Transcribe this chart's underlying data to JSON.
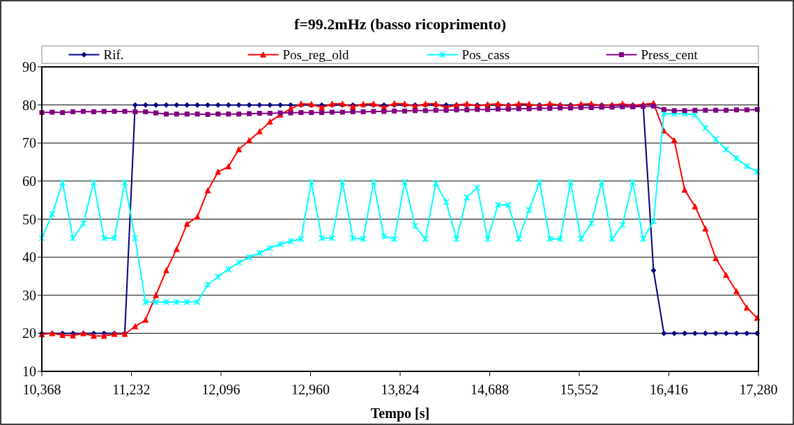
{
  "chart_data": {
    "type": "line",
    "title": "f=99.2mHz (basso ricoprimento)",
    "xlabel": "Tempo [s]",
    "x": [
      10368,
      10468,
      10568,
      10668,
      10768,
      10868,
      10968,
      11068,
      11168,
      11268,
      11368,
      11468,
      11568,
      11668,
      11768,
      11868,
      11968,
      12068,
      12168,
      12268,
      12368,
      12468,
      12568,
      12668,
      12768,
      12868,
      12968,
      13068,
      13168,
      13268,
      13368,
      13468,
      13568,
      13668,
      13768,
      13868,
      13968,
      14068,
      14168,
      14268,
      14368,
      14468,
      14568,
      14668,
      14768,
      14868,
      14968,
      15068,
      15168,
      15268,
      15368,
      15468,
      15568,
      15668,
      15768,
      15868,
      15968,
      16068,
      16168,
      16268,
      16368,
      16468,
      16568,
      16668,
      16768,
      16868,
      16968,
      17068,
      17168,
      17268
    ],
    "series": [
      {
        "name": "Rif.",
        "color": "#000080",
        "marker": "diamond",
        "values": [
          20,
          20,
          20,
          20,
          20,
          20,
          20,
          20,
          20,
          80,
          80,
          80,
          80,
          80,
          80,
          80,
          80,
          80,
          80,
          80,
          80,
          80,
          80,
          80,
          80,
          80,
          80,
          80,
          80,
          80,
          80,
          80,
          80,
          80,
          80,
          80,
          80,
          80,
          80,
          80,
          80,
          80,
          80,
          80,
          80,
          80,
          80,
          80,
          80,
          80,
          80,
          80,
          80,
          80,
          80,
          80,
          80,
          80,
          80,
          36.5,
          20,
          20,
          20,
          20,
          20,
          20,
          20,
          20,
          20,
          20
        ]
      },
      {
        "name": "Pos_reg_old",
        "color": "#ff0000",
        "marker": "triangle",
        "values": [
          19.7,
          20,
          19.5,
          19.4,
          20,
          19.3,
          19.3,
          19.8,
          19.8,
          21.8,
          23.5,
          30,
          36.5,
          42.1,
          48.7,
          50.6,
          57.5,
          62.4,
          63.8,
          68.3,
          70.7,
          73,
          75.6,
          77.4,
          79,
          80.3,
          80.2,
          79.3,
          80.3,
          80.3,
          79.5,
          80.2,
          80.3,
          79.3,
          80.4,
          80.3,
          79.6,
          80.3,
          80.3,
          79.3,
          80,
          80.3,
          79.7,
          80.1,
          80.3,
          79.8,
          80.3,
          80.2,
          79.7,
          80.3,
          80,
          79.7,
          80.2,
          80.3,
          79.8,
          80,
          80.3,
          79.9,
          80.1,
          80.5,
          73.2,
          70.7,
          57.7,
          53.3,
          47.5,
          39.7,
          35.3,
          31,
          26.7,
          24
        ]
      },
      {
        "name": "Pos_cass",
        "color": "#00ffff",
        "marker": "cross",
        "values": [
          45,
          51.3,
          59.6,
          45,
          48.8,
          59.6,
          45,
          45,
          59.6,
          45,
          28.2,
          28.2,
          28.2,
          28.2,
          28.2,
          28.2,
          32.8,
          34.9,
          36.8,
          38.6,
          40,
          41.1,
          42.4,
          43.4,
          44.2,
          44.8,
          59.7,
          45,
          45,
          59.7,
          45,
          44.8,
          59.7,
          45.5,
          44.8,
          59.7,
          48.2,
          44.8,
          59.4,
          54.5,
          44.8,
          55.7,
          58.3,
          44.8,
          53.7,
          53.7,
          44.8,
          52.4,
          59.7,
          44.8,
          44.8,
          59.7,
          44.8,
          48.9,
          59.7,
          44.8,
          48.5,
          59.7,
          44.8,
          49.4,
          77.7,
          77.7,
          77.7,
          77.4,
          74,
          71,
          68.3,
          66,
          63.9,
          62.5
        ]
      },
      {
        "name": "Press_cent",
        "color": "#800080",
        "marker": "square",
        "values": [
          78,
          78.1,
          78,
          78.2,
          78.3,
          78.2,
          78.3,
          78.3,
          78.3,
          78.2,
          78.2,
          77.9,
          77.6,
          77.6,
          77.6,
          77.6,
          77.5,
          77.6,
          77.6,
          77.6,
          77.7,
          77.8,
          77.8,
          77.9,
          77.9,
          78,
          78,
          78,
          78.1,
          78.1,
          78.2,
          78.2,
          78.3,
          78.3,
          78.4,
          78.4,
          78.5,
          78.5,
          78.6,
          78.6,
          78.7,
          78.7,
          78.8,
          78.8,
          78.9,
          78.9,
          79,
          79,
          79.1,
          79.1,
          79.2,
          79.2,
          79.3,
          79.3,
          79.4,
          79.4,
          79.5,
          79.5,
          79.6,
          79.7,
          78.8,
          78.5,
          78.5,
          78.6,
          78.6,
          78.6,
          78.6,
          78.7,
          78.7,
          78.8
        ]
      }
    ],
    "xlim": [
      10368,
      17280
    ],
    "xticks": [
      {
        "value": 10368,
        "label": "10,368"
      },
      {
        "value": 11232,
        "label": "11,232"
      },
      {
        "value": 12096,
        "label": "12,096"
      },
      {
        "value": 12960,
        "label": "12,960"
      },
      {
        "value": 13824,
        "label": "13,824"
      },
      {
        "value": 14688,
        "label": "14,688"
      },
      {
        "value": 15552,
        "label": "15,552"
      },
      {
        "value": 16416,
        "label": "16,416"
      },
      {
        "value": 17280,
        "label": "17,280"
      }
    ],
    "ylim": [
      10,
      90
    ],
    "yticks": [
      10,
      20,
      30,
      40,
      50,
      60,
      70,
      80,
      90
    ],
    "grid": "y",
    "legend": "top",
    "line_style": "solid"
  }
}
